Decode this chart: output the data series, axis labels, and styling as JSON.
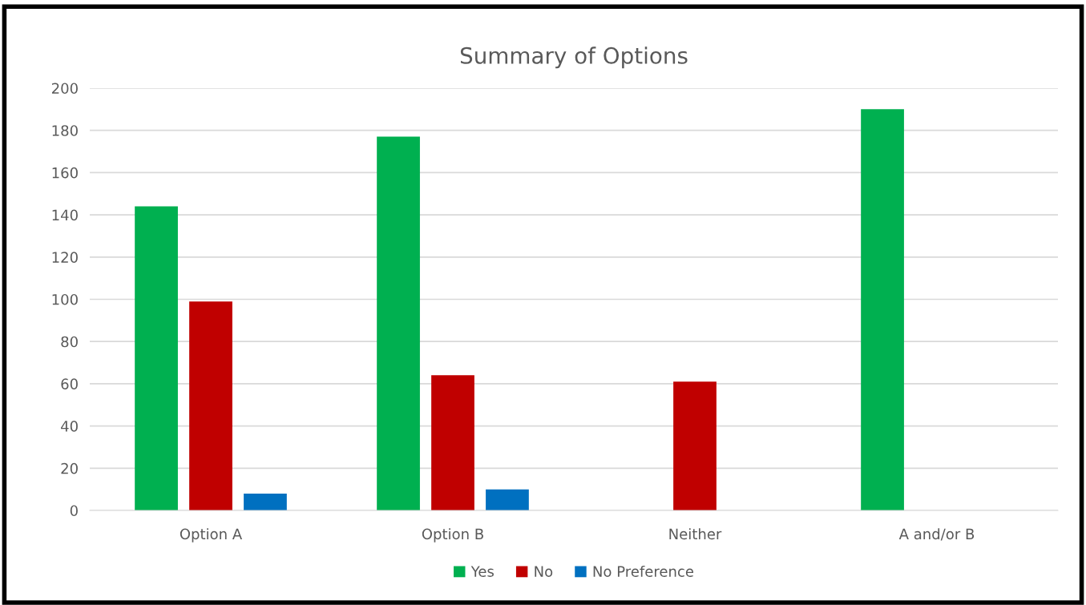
{
  "chart_data": {
    "type": "bar",
    "title": "Summary of Options",
    "categories": [
      "Option A",
      "Option B",
      "Neither",
      "A and/or B"
    ],
    "series": [
      {
        "name": "Yes",
        "color": "#00b050",
        "values": [
          144,
          177,
          null,
          190
        ]
      },
      {
        "name": "No",
        "color": "#c00000",
        "values": [
          99,
          64,
          61,
          null
        ]
      },
      {
        "name": "No Preference",
        "color": "#0070c0",
        "values": [
          8,
          10,
          null,
          null
        ]
      }
    ],
    "ylim": [
      0,
      200
    ],
    "yticks": [
      0,
      20,
      40,
      60,
      80,
      100,
      120,
      140,
      160,
      180,
      200
    ],
    "grid": "y",
    "legend": "bottom"
  }
}
